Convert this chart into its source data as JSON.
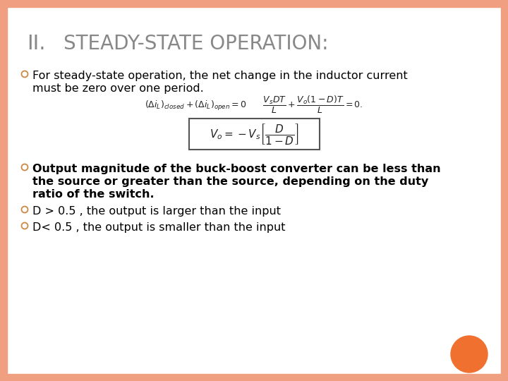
{
  "bg_color": "#ffffff",
  "border_color": "#f0a080",
  "title_roman": "II.",
  "title_rest": "  Steady-State Operation:",
  "title_color": "#888888",
  "title_fontsize": 21,
  "text_color": "#000000",
  "bullet1_line1": "For steady-state operation, the net change in the inductor current",
  "bullet1_line2": "must be zero over one period.",
  "bullet2_line1": "Output magnitude of the buck-boost converter can be less than",
  "bullet2_line2": "the source or greater than the source, depending on the duty",
  "bullet2_line3": "ratio of the switch.",
  "bullet3": "D > 0.5 , the output is larger than the input",
  "bullet4": "D< 0.5 , the output is smaller than the input",
  "orange_circle_color": "#f07030",
  "border_width": 10
}
